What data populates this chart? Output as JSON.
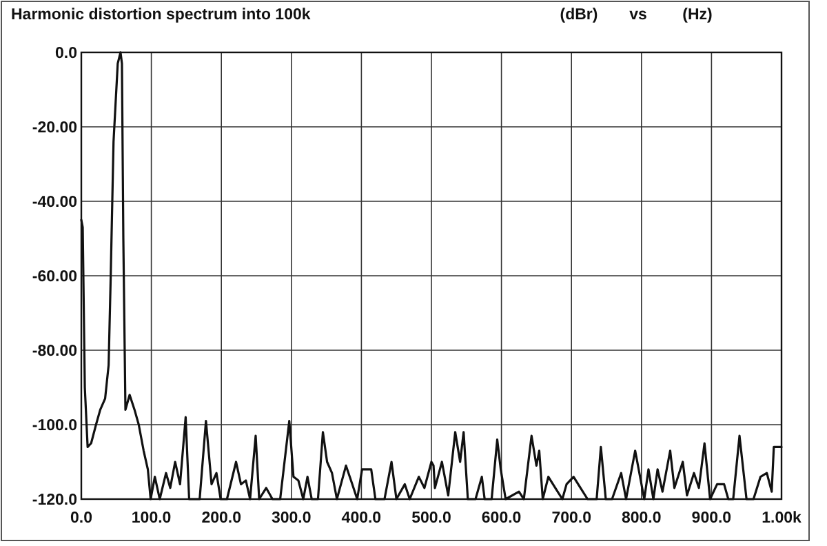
{
  "chart_data": {
    "type": "line",
    "title": "Harmonic distortion spectrum into 100k",
    "ylabel": "(dBr)",
    "xlabel": "(Hz)",
    "annotations": [
      "vs"
    ],
    "xlim": [
      0,
      1000
    ],
    "ylim": [
      -120,
      0
    ],
    "xticks": [
      {
        "value": 0,
        "label": "0.0"
      },
      {
        "value": 100,
        "label": "100.0"
      },
      {
        "value": 200,
        "label": "200.0"
      },
      {
        "value": 300,
        "label": "300.0"
      },
      {
        "value": 400,
        "label": "400.0"
      },
      {
        "value": 500,
        "label": "500.0"
      },
      {
        "value": 600,
        "label": "600.0"
      },
      {
        "value": 700,
        "label": "700.0"
      },
      {
        "value": 800,
        "label": "800.0"
      },
      {
        "value": 900,
        "label": "900.0"
      },
      {
        "value": 1000,
        "label": "1.00k"
      }
    ],
    "yticks": [
      {
        "value": 0,
        "label": "0.0"
      },
      {
        "value": -20,
        "label": "-20.00"
      },
      {
        "value": -40,
        "label": "-40.00"
      },
      {
        "value": -60,
        "label": "-60.00"
      },
      {
        "value": -80,
        "label": "-80.00"
      },
      {
        "value": -100,
        "label": "-100.0"
      },
      {
        "value": -120,
        "label": "-120.0"
      }
    ],
    "grid": true,
    "line_style": "solid",
    "marker": "none",
    "series": [
      {
        "color": "#111111",
        "x": [
          0,
          2,
          5,
          9,
          14,
          21,
          27,
          34,
          39,
          42,
          46,
          52,
          56,
          58,
          60,
          63,
          69,
          76,
          82,
          89,
          95,
          99,
          105,
          112,
          121,
          127,
          134,
          141,
          149,
          154,
          169,
          178,
          186,
          193,
          199,
          208,
          221,
          228,
          235,
          241,
          249,
          254,
          264,
          273,
          284,
          297,
          303,
          310,
          317,
          323,
          329,
          338,
          345,
          351,
          358,
          365,
          378,
          387,
          394,
          401,
          414,
          420,
          433,
          443,
          450,
          462,
          469,
          482,
          490,
          500,
          503,
          505,
          515,
          524,
          534,
          541,
          546,
          552,
          563,
          572,
          576,
          586,
          594,
          599,
          606,
          625,
          632,
          643,
          650,
          654,
          659,
          667,
          677,
          687,
          693,
          703,
          713,
          723,
          736,
          742,
          749,
          758,
          771,
          778,
          791,
          797,
          804,
          810,
          817,
          823,
          830,
          841,
          847,
          859,
          865,
          875,
          882,
          890,
          898,
          908,
          918,
          924,
          931,
          940,
          950,
          960,
          970,
          979,
          986,
          989,
          1000
        ],
        "values": [
          -45,
          -47,
          -90,
          -106,
          -105,
          -100,
          -96,
          -93,
          -84,
          -60,
          -24,
          -3,
          0,
          -3,
          -50,
          -96,
          -92,
          -96,
          -100,
          -107,
          -112,
          -120,
          -114,
          -120,
          -113,
          -117,
          -110,
          -116,
          -98,
          -120,
          -120,
          -99,
          -116,
          -113,
          -120,
          -120,
          -110,
          -116,
          -115,
          -120,
          -103,
          -120,
          -117,
          -120,
          -120,
          -99,
          -114,
          -115,
          -120,
          -114,
          -120,
          -120,
          -102,
          -110,
          -113,
          -120,
          -111,
          -116,
          -120,
          -112,
          -112,
          -120,
          -120,
          -110,
          -120,
          -116,
          -120,
          -114,
          -117,
          -110,
          -111,
          -117,
          -110,
          -119,
          -102,
          -110,
          -102,
          -120,
          -120,
          -114,
          -120,
          -120,
          -104,
          -112,
          -120,
          -118,
          -120,
          -103,
          -111,
          -107,
          -120,
          -114,
          -117,
          -120,
          -116,
          -114,
          -117,
          -120,
          -120,
          -106,
          -120,
          -120,
          -113,
          -120,
          -107,
          -113,
          -120,
          -112,
          -120,
          -112,
          -118,
          -107,
          -117,
          -110,
          -119,
          -113,
          -117,
          -105,
          -120,
          -116,
          -116,
          -120,
          -120,
          -103,
          -120,
          -120,
          -114,
          -113,
          -118,
          -106,
          -106
        ]
      }
    ]
  }
}
